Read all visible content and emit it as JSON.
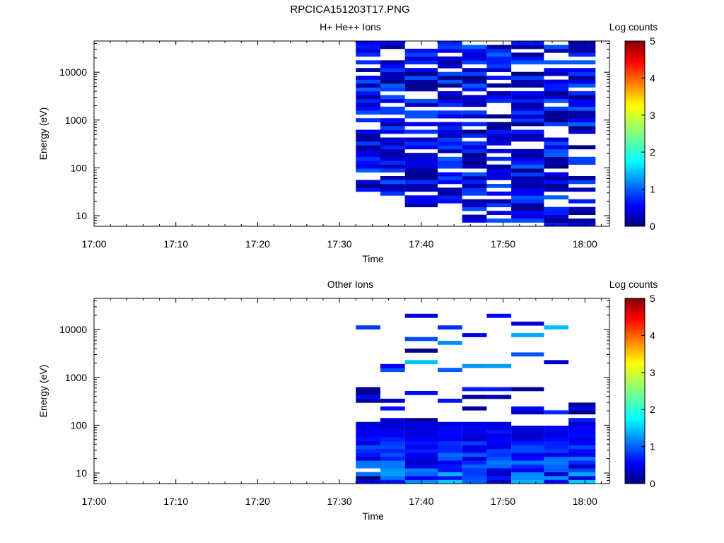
{
  "figure": {
    "title": "RPCICA151203T17.PNG"
  },
  "chart_data": [
    {
      "type": "heatmap",
      "title": "H+ He++ Ions",
      "xlabel": "Time",
      "ylabel": "Energy (eV)",
      "x_ticks": [
        "17:00",
        "17:10",
        "17:20",
        "17:30",
        "17:40",
        "17:50",
        "18:00"
      ],
      "y_ticks": [
        "10",
        "100",
        "1000",
        "10000"
      ],
      "y_scale": "log",
      "ylim": [
        6,
        45000
      ],
      "xlim": [
        "17:00",
        "18:03"
      ],
      "colorbar": {
        "label": "Log counts",
        "range": [
          0,
          5
        ],
        "ticks": [
          "0",
          "1",
          "2",
          "3",
          "4",
          "5"
        ]
      },
      "time_bins": [
        "17:32",
        "17:35",
        "17:38",
        "17:42",
        "17:45",
        "17:48",
        "17:51",
        "17:55",
        "17:58"
      ],
      "z_range_observed": [
        0,
        1
      ],
      "note": ""
    },
    {
      "type": "heatmap",
      "title": "Other Ions",
      "xlabel": "Time",
      "ylabel": "Energy (eV)",
      "x_ticks": [
        "17:00",
        "17:10",
        "17:20",
        "17:30",
        "17:40",
        "17:50",
        "18:00"
      ],
      "y_ticks": [
        "10",
        "100",
        "1000",
        "10000"
      ],
      "y_scale": "log",
      "ylim": [
        6,
        45000
      ],
      "xlim": [
        "17:00",
        "18:03"
      ],
      "colorbar": {
        "label": "Log counts",
        "range": [
          0,
          5
        ],
        "ticks": [
          "0",
          "1",
          "2",
          "3",
          "4",
          "5"
        ]
      },
      "time_bins": [
        "17:32",
        "17:35",
        "17:38",
        "17:42",
        "17:45",
        "17:48",
        "17:51",
        "17:55",
        "17:58"
      ],
      "z_range_observed": [
        0,
        2
      ]
    }
  ]
}
